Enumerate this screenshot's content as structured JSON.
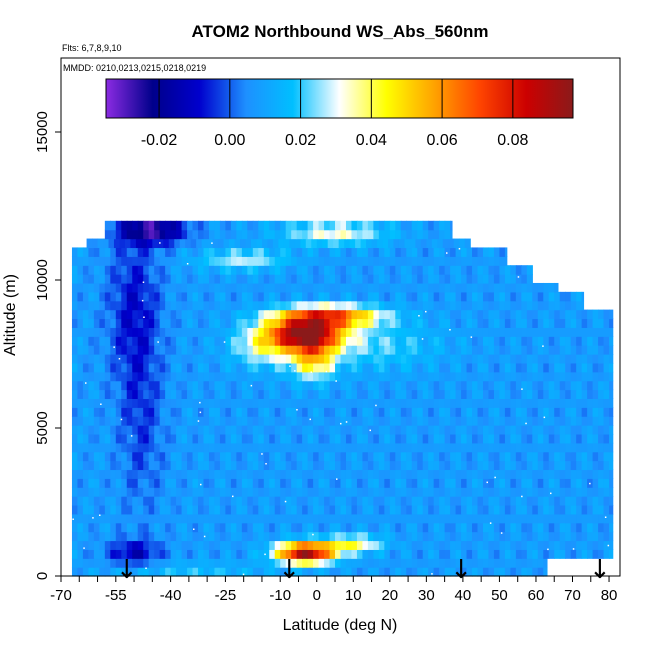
{
  "chart_data": {
    "type": "heatmap",
    "title": "ATOM2 Northbound WS_Abs_560nm",
    "flights_text": "Flts: 6,7,8,9,10",
    "dates_text": "MMDD: 0210,0213,0215,0218,0219",
    "xlabel": "Latitude (deg N)",
    "ylabel": "Altitude (m)",
    "xlim": [
      -70,
      83
    ],
    "ylim": [
      0,
      17500
    ],
    "x_tick_labels": [
      "-70",
      "-55",
      "-40",
      "-25",
      "-10",
      "0",
      "10",
      "20",
      "30",
      "40",
      "50",
      "60",
      "70",
      "80"
    ],
    "x_tick_values": [
      -70,
      -55,
      -40,
      -25,
      -10,
      0,
      10,
      20,
      30,
      40,
      50,
      60,
      70,
      80
    ],
    "x_minor_step": 5,
    "y_tick_labels": [
      "0",
      "5000",
      "10000",
      "15000"
    ],
    "y_tick_values": [
      0,
      5000,
      10000,
      15000
    ],
    "colorbar": {
      "range": [
        -0.035,
        0.097
      ],
      "tick_values": [
        -0.02,
        0.0,
        0.02,
        0.04,
        0.06,
        0.08
      ],
      "tick_labels": [
        "-0.02",
        "0.00",
        "0.02",
        "0.04",
        "0.06",
        "0.08"
      ],
      "stops": [
        "#8b2be2",
        "#00008b",
        "#0000cd",
        "#1e90ff",
        "#00bfff",
        "#ffffff",
        "#ffff00",
        "#ffa500",
        "#ff4500",
        "#cc0000",
        "#8b1a1a"
      ]
    },
    "profile_markers_lat": [
      -52,
      -7.5,
      39.5,
      77.5
    ],
    "profile_marker_symbol": "↓",
    "data_extent_note": "colored field spans roughly lat -67 to 81, altitude 0 to 12000 m",
    "features": [
      {
        "name": "southern-lower-tropo-minimum",
        "lat": -50,
        "alt_m": 9000,
        "value": -0.015
      },
      {
        "name": "upper-tropo-south-minimum",
        "lat": -45,
        "alt_m": 11700,
        "value": -0.03
      },
      {
        "name": "tropical-upper-tropo-maximum",
        "lat": -3,
        "alt_m": 8200,
        "value": 0.085
      },
      {
        "name": "tropical-boundary-layer-maximum",
        "lat": -3,
        "alt_m": 800,
        "value": 0.08
      }
    ]
  }
}
